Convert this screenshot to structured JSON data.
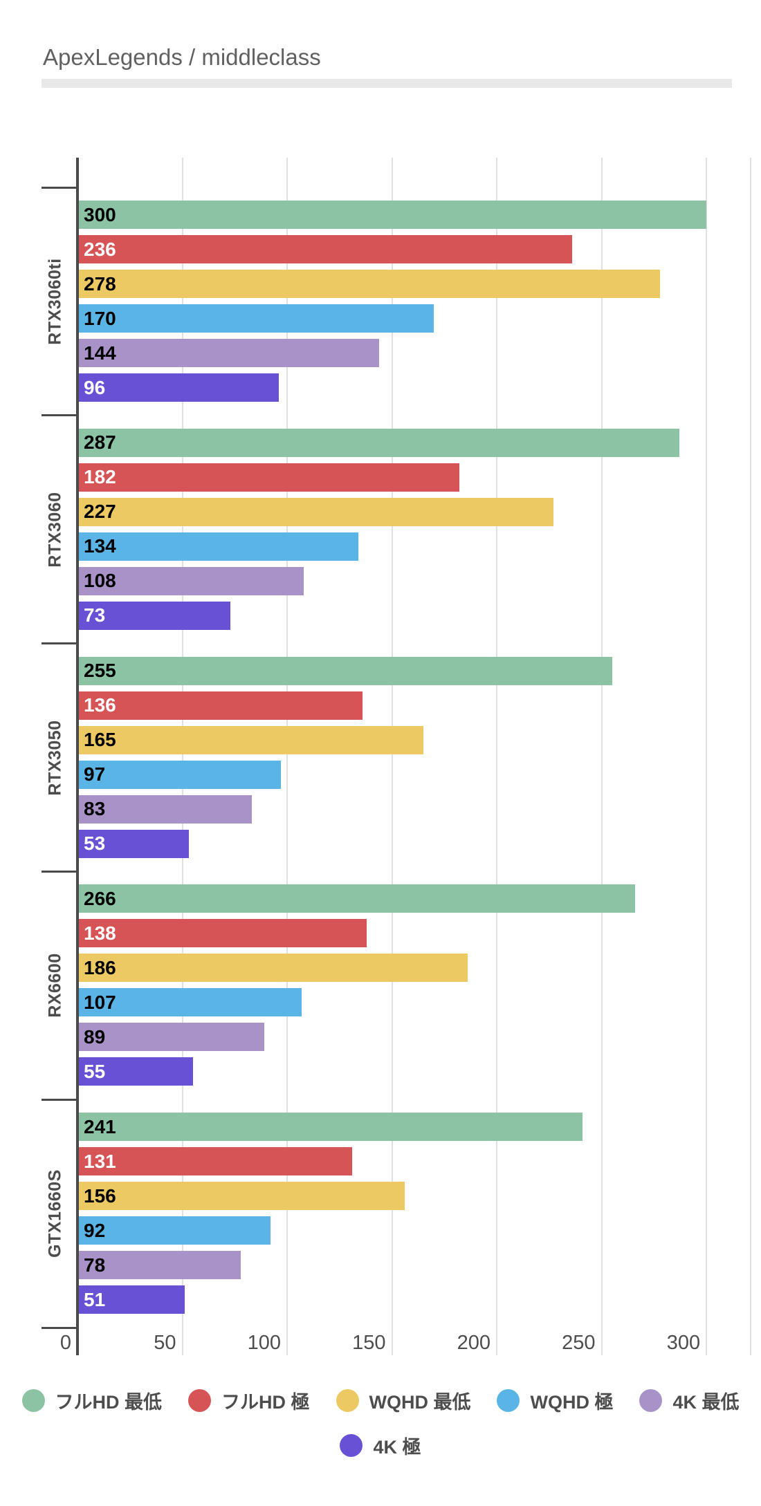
{
  "title": "ApexLegends / middleclass",
  "chart_data": {
    "type": "bar",
    "orientation": "horizontal",
    "title": "ApexLegends / middleclass",
    "categories": [
      "RTX3060ti",
      "RTX3060",
      "RTX3050",
      "RX6600",
      "GTX1660S"
    ],
    "series": [
      {
        "name": "フルHD 最低",
        "color": "#8BC3A4",
        "value_label_color": "#000000",
        "values": [
          300,
          287,
          255,
          266,
          241
        ]
      },
      {
        "name": "フルHD 極",
        "color": "#D65356",
        "value_label_color": "#FFFFFF",
        "values": [
          236,
          182,
          136,
          138,
          131
        ]
      },
      {
        "name": "WQHD 最低",
        "color": "#ECC963",
        "value_label_color": "#000000",
        "values": [
          278,
          227,
          165,
          186,
          156
        ]
      },
      {
        "name": "WQHD 極",
        "color": "#5AB4E5",
        "value_label_color": "#000000",
        "values": [
          170,
          134,
          97,
          107,
          92
        ]
      },
      {
        "name": "4K 最低",
        "color": "#A892C8",
        "value_label_color": "#000000",
        "values": [
          144,
          108,
          83,
          89,
          78
        ]
      },
      {
        "name": "4K 極",
        "color": "#6951D6",
        "value_label_color": "#FFFFFF",
        "values": [
          96,
          73,
          53,
          55,
          51
        ]
      }
    ],
    "x_ticks": [
      0,
      50,
      100,
      150,
      200,
      250,
      300
    ],
    "xlim": [
      0,
      321
    ],
    "grid": true,
    "legend_position": "bottom",
    "legend_wrap": 5
  },
  "colors": {
    "axis": "#4a4a4a",
    "grid": "#e0e0e0",
    "tick_label": "#4d4d4d",
    "title": "#616161",
    "divider": "#e8e8e8"
  }
}
